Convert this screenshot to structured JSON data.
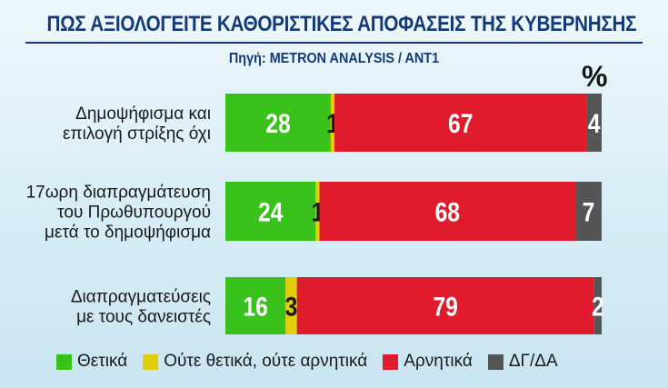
{
  "header": {
    "title": "ΠΩΣ ΑΞΙΟΛΟΓΕΙΤΕ ΚΑΘΟΡΙΣΤΙΚΕΣ ΑΠΟΦΑΣΕΙΣ ΤΗΣ ΚΥΒΕΡΝΗΣΗΣ",
    "source": "Πηγή: METRON ANALYSIS / ANT1"
  },
  "chart_data": {
    "type": "bar",
    "orientation": "horizontal",
    "stacked": true,
    "unit": "%",
    "categories": [
      [
        "Δημοψήφισμα και",
        "επιλογή στρίξης όχι"
      ],
      [
        "17ωρη διαπραγμάτευση",
        "του Πρωθυπουργού",
        "μετά το δημοψήφισμα"
      ],
      [
        "Διαπραγματεύσεις",
        "με τους δανειστές"
      ]
    ],
    "series": [
      {
        "name": "Θετικά",
        "color": "#39c21b",
        "values": [
          28,
          24,
          16
        ]
      },
      {
        "name": "Ούτε θετικά, ούτε αρνητικά",
        "color": "#e3cd0a",
        "values": [
          1,
          1,
          3
        ]
      },
      {
        "name": "Αρνητικά",
        "color": "#e01b2c",
        "values": [
          67,
          68,
          79
        ]
      },
      {
        "name": "ΔΓ/ΔΑ",
        "color": "#555555",
        "values": [
          4,
          7,
          2
        ]
      }
    ],
    "xlim": [
      0,
      100
    ],
    "grid": false,
    "legend_position": "bottom"
  }
}
